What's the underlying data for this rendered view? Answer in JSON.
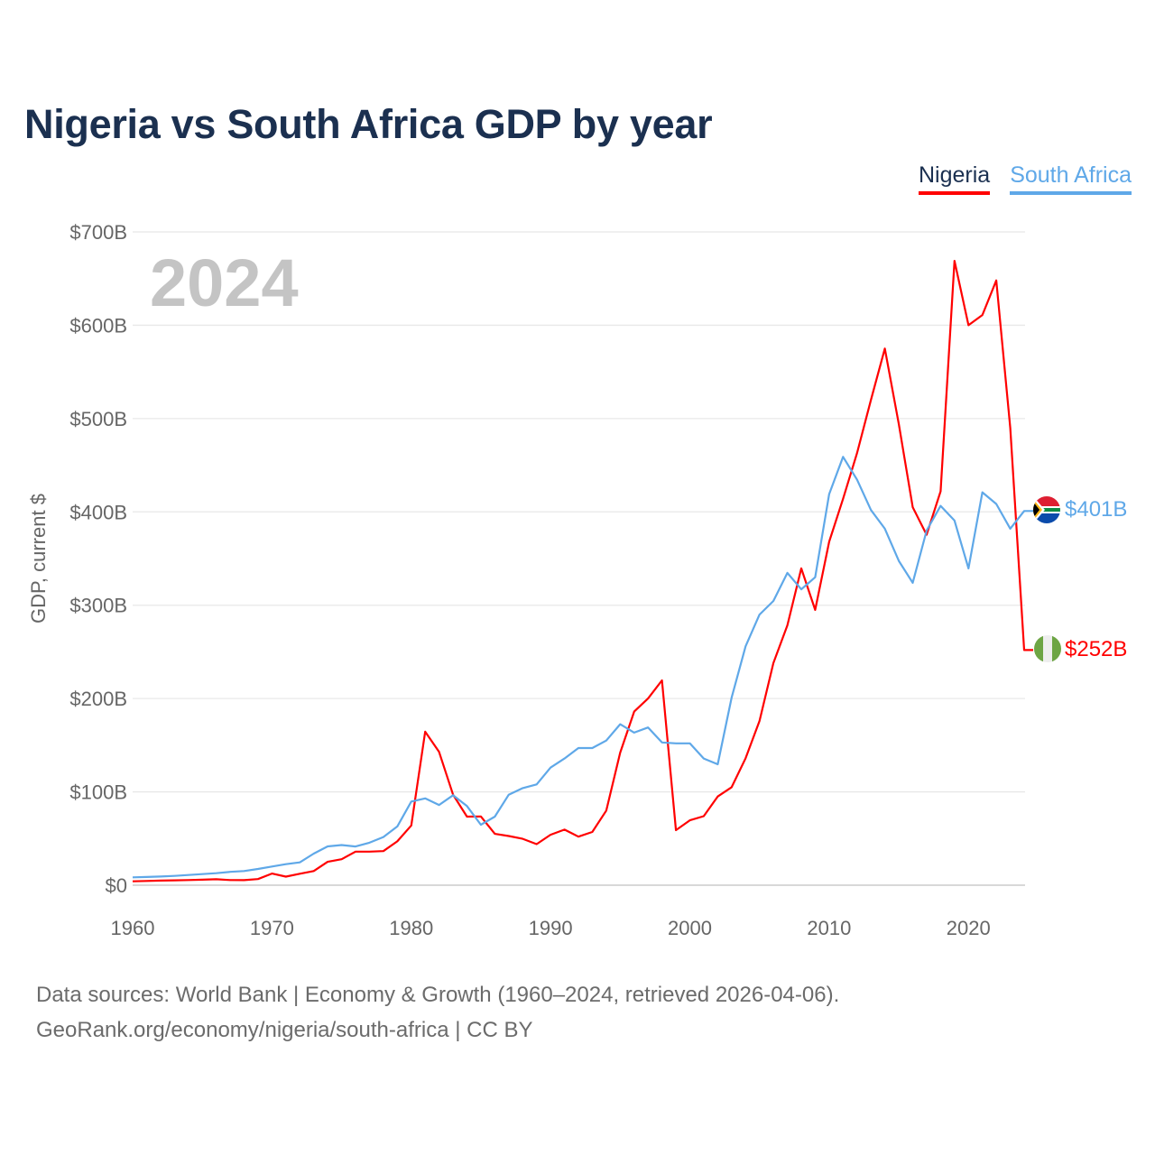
{
  "title": "Nigeria vs South Africa GDP by year",
  "legend": [
    {
      "label": "Nigeria",
      "color": "#ff0000",
      "text_color": "#1b3050"
    },
    {
      "label": "South Africa",
      "color": "#5fa8e8",
      "text_color": "#5fa8e8"
    }
  ],
  "footer": {
    "line1": "Data sources: World Bank | Economy & Growth (1960–2024, retrieved 2026-04-06).",
    "line2": "GeoRank.org/economy/nigeria/south-africa | CC BY"
  },
  "chart_data": {
    "type": "line",
    "title": "Nigeria vs South Africa GDP by year",
    "xlabel": "",
    "ylabel": "GDP, current $",
    "year_watermark": "2024",
    "xlim": [
      1960,
      2024
    ],
    "ylim": [
      0,
      700
    ],
    "grid": true,
    "legend_position": "top-right",
    "x_ticks": [
      1960,
      1970,
      1980,
      1990,
      2000,
      2010,
      2020
    ],
    "x_tick_labels": [
      "1960",
      "1970",
      "1980",
      "1990",
      "2000",
      "2010",
      "2020"
    ],
    "y_ticks": [
      0,
      100,
      200,
      300,
      400,
      500,
      600,
      700
    ],
    "y_tick_labels": [
      "$0",
      "$100B",
      "$200B",
      "$300B",
      "$400B",
      "$500B",
      "$600B",
      "$700B"
    ],
    "x": [
      1960,
      1961,
      1962,
      1963,
      1964,
      1965,
      1966,
      1967,
      1968,
      1969,
      1970,
      1971,
      1972,
      1973,
      1974,
      1975,
      1976,
      1977,
      1978,
      1979,
      1980,
      1981,
      1982,
      1983,
      1984,
      1985,
      1986,
      1987,
      1988,
      1989,
      1990,
      1991,
      1992,
      1993,
      1994,
      1995,
      1996,
      1997,
      1998,
      1999,
      2000,
      2001,
      2002,
      2003,
      2004,
      2005,
      2006,
      2007,
      2008,
      2009,
      2010,
      2011,
      2012,
      2013,
      2014,
      2015,
      2016,
      2017,
      2018,
      2019,
      2020,
      2021,
      2022,
      2023,
      2024
    ],
    "series": [
      {
        "name": "Nigeria",
        "color": "#ff0000",
        "end_label": "$252B",
        "flag": "nigeria-flag",
        "values": [
          4.2,
          4.5,
          4.9,
          5.2,
          5.5,
          5.9,
          6.4,
          5.5,
          5.4,
          6.6,
          12.5,
          9.2,
          12.3,
          15.2,
          25,
          27.8,
          36,
          36,
          36.5,
          47,
          64,
          164.5,
          142.8,
          97,
          73.5,
          73.7,
          55,
          52.7,
          49.7,
          44,
          54,
          59.6,
          52,
          57,
          80,
          142,
          186,
          200,
          219.5,
          59,
          69.5,
          74,
          95,
          105,
          136,
          176,
          238,
          278.5,
          339.5,
          295,
          368,
          414,
          463,
          520,
          575,
          494,
          405,
          375.5,
          422,
          669,
          600,
          611,
          648,
          490,
          252
        ]
      },
      {
        "name": "South Africa",
        "color": "#5fa8e8",
        "end_label": "$401B",
        "flag": "south-africa-flag",
        "values": [
          8.4,
          8.8,
          9.3,
          10,
          10.9,
          11.9,
          12.9,
          14.3,
          15.2,
          17.4,
          20,
          22.5,
          24.5,
          33.8,
          41.6,
          43,
          41.5,
          45.5,
          51.6,
          62.9,
          89.6,
          93,
          86,
          96.4,
          84.8,
          64.8,
          73.5,
          97,
          104,
          108,
          126,
          135.7,
          147,
          147,
          155,
          172.5,
          163.5,
          169,
          153,
          152,
          152,
          135.7,
          129.6,
          201,
          256,
          290,
          304.6,
          334.6,
          317,
          330,
          419,
          459,
          434.5,
          402,
          382,
          347.5,
          324,
          380,
          406.5,
          390.7,
          339.5,
          421,
          408.5,
          382,
          401
        ]
      }
    ]
  }
}
